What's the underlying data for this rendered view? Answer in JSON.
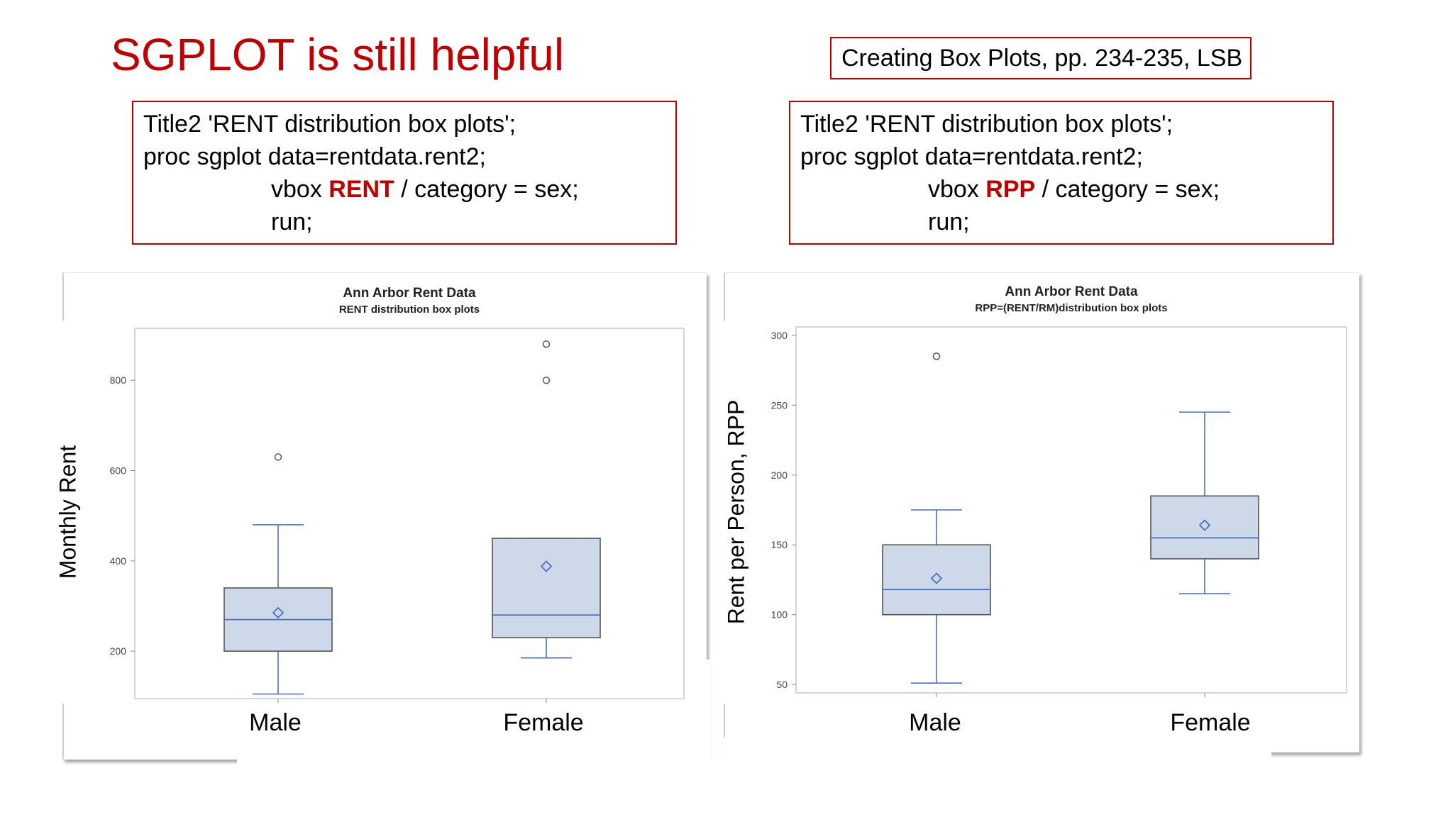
{
  "slide": {
    "title": "SGPLOT is still helpful",
    "reference": "Creating Box Plots, pp. 234-235, LSB"
  },
  "code_left": {
    "line1": "Title2 'RENT distribution box plots';",
    "line2": "proc sgplot data=rentdata.rent2;",
    "line3_pre": "vbox ",
    "line3_var": "RENT",
    "line3_post": " / category = sex;",
    "line4": "run;"
  },
  "code_right": {
    "line1": "Title2 'RENT distribution box plots';",
    "line2": "proc sgplot data=rentdata.rent2;",
    "line3_pre": "vbox ",
    "line3_var": "RPP",
    "line3_post": " / category = sex;",
    "line4": "run;"
  },
  "colors": {
    "accent": "#c00000",
    "box_fill": "#cdd9e8",
    "median_line": "#4a6fc4",
    "whisker": "#4a6fc4",
    "mean_marker": "#4a6fc4"
  },
  "chart_data": [
    {
      "type": "box",
      "title": "Ann Arbor Rent Data",
      "subtitle": "RENT distribution box plots",
      "ylabel": "Monthly Rent",
      "categories": [
        "Male",
        "Female"
      ],
      "ylim": [
        95,
        915
      ],
      "yticks": [
        200,
        400,
        600,
        800
      ],
      "boxes": [
        {
          "category": "Male",
          "whisker_low": 105,
          "q1": 200,
          "median": 270,
          "q3": 340,
          "whisker_high": 480,
          "mean": 285,
          "outliers": [
            630
          ]
        },
        {
          "category": "Female",
          "whisker_low": 185,
          "q1": 230,
          "median": 280,
          "q3": 450,
          "whisker_high": 450,
          "mean": 388,
          "outliers": [
            800,
            880
          ]
        }
      ]
    },
    {
      "type": "box",
      "title": "Ann Arbor Rent Data",
      "subtitle": "RPP=(RENT/RM)distribution box plots",
      "ylabel": "Rent per Person, RPP",
      "categories": [
        "Male",
        "Female"
      ],
      "ylim": [
        44,
        306
      ],
      "yticks": [
        50,
        100,
        150,
        200,
        250,
        300
      ],
      "boxes": [
        {
          "category": "Male",
          "whisker_low": 51,
          "q1": 100,
          "median": 118,
          "q3": 150,
          "whisker_high": 175,
          "mean": 126,
          "outliers": [
            285
          ]
        },
        {
          "category": "Female",
          "whisker_low": 115,
          "q1": 140,
          "median": 155,
          "q3": 185,
          "whisker_high": 245,
          "mean": 164,
          "outliers": []
        }
      ]
    }
  ]
}
